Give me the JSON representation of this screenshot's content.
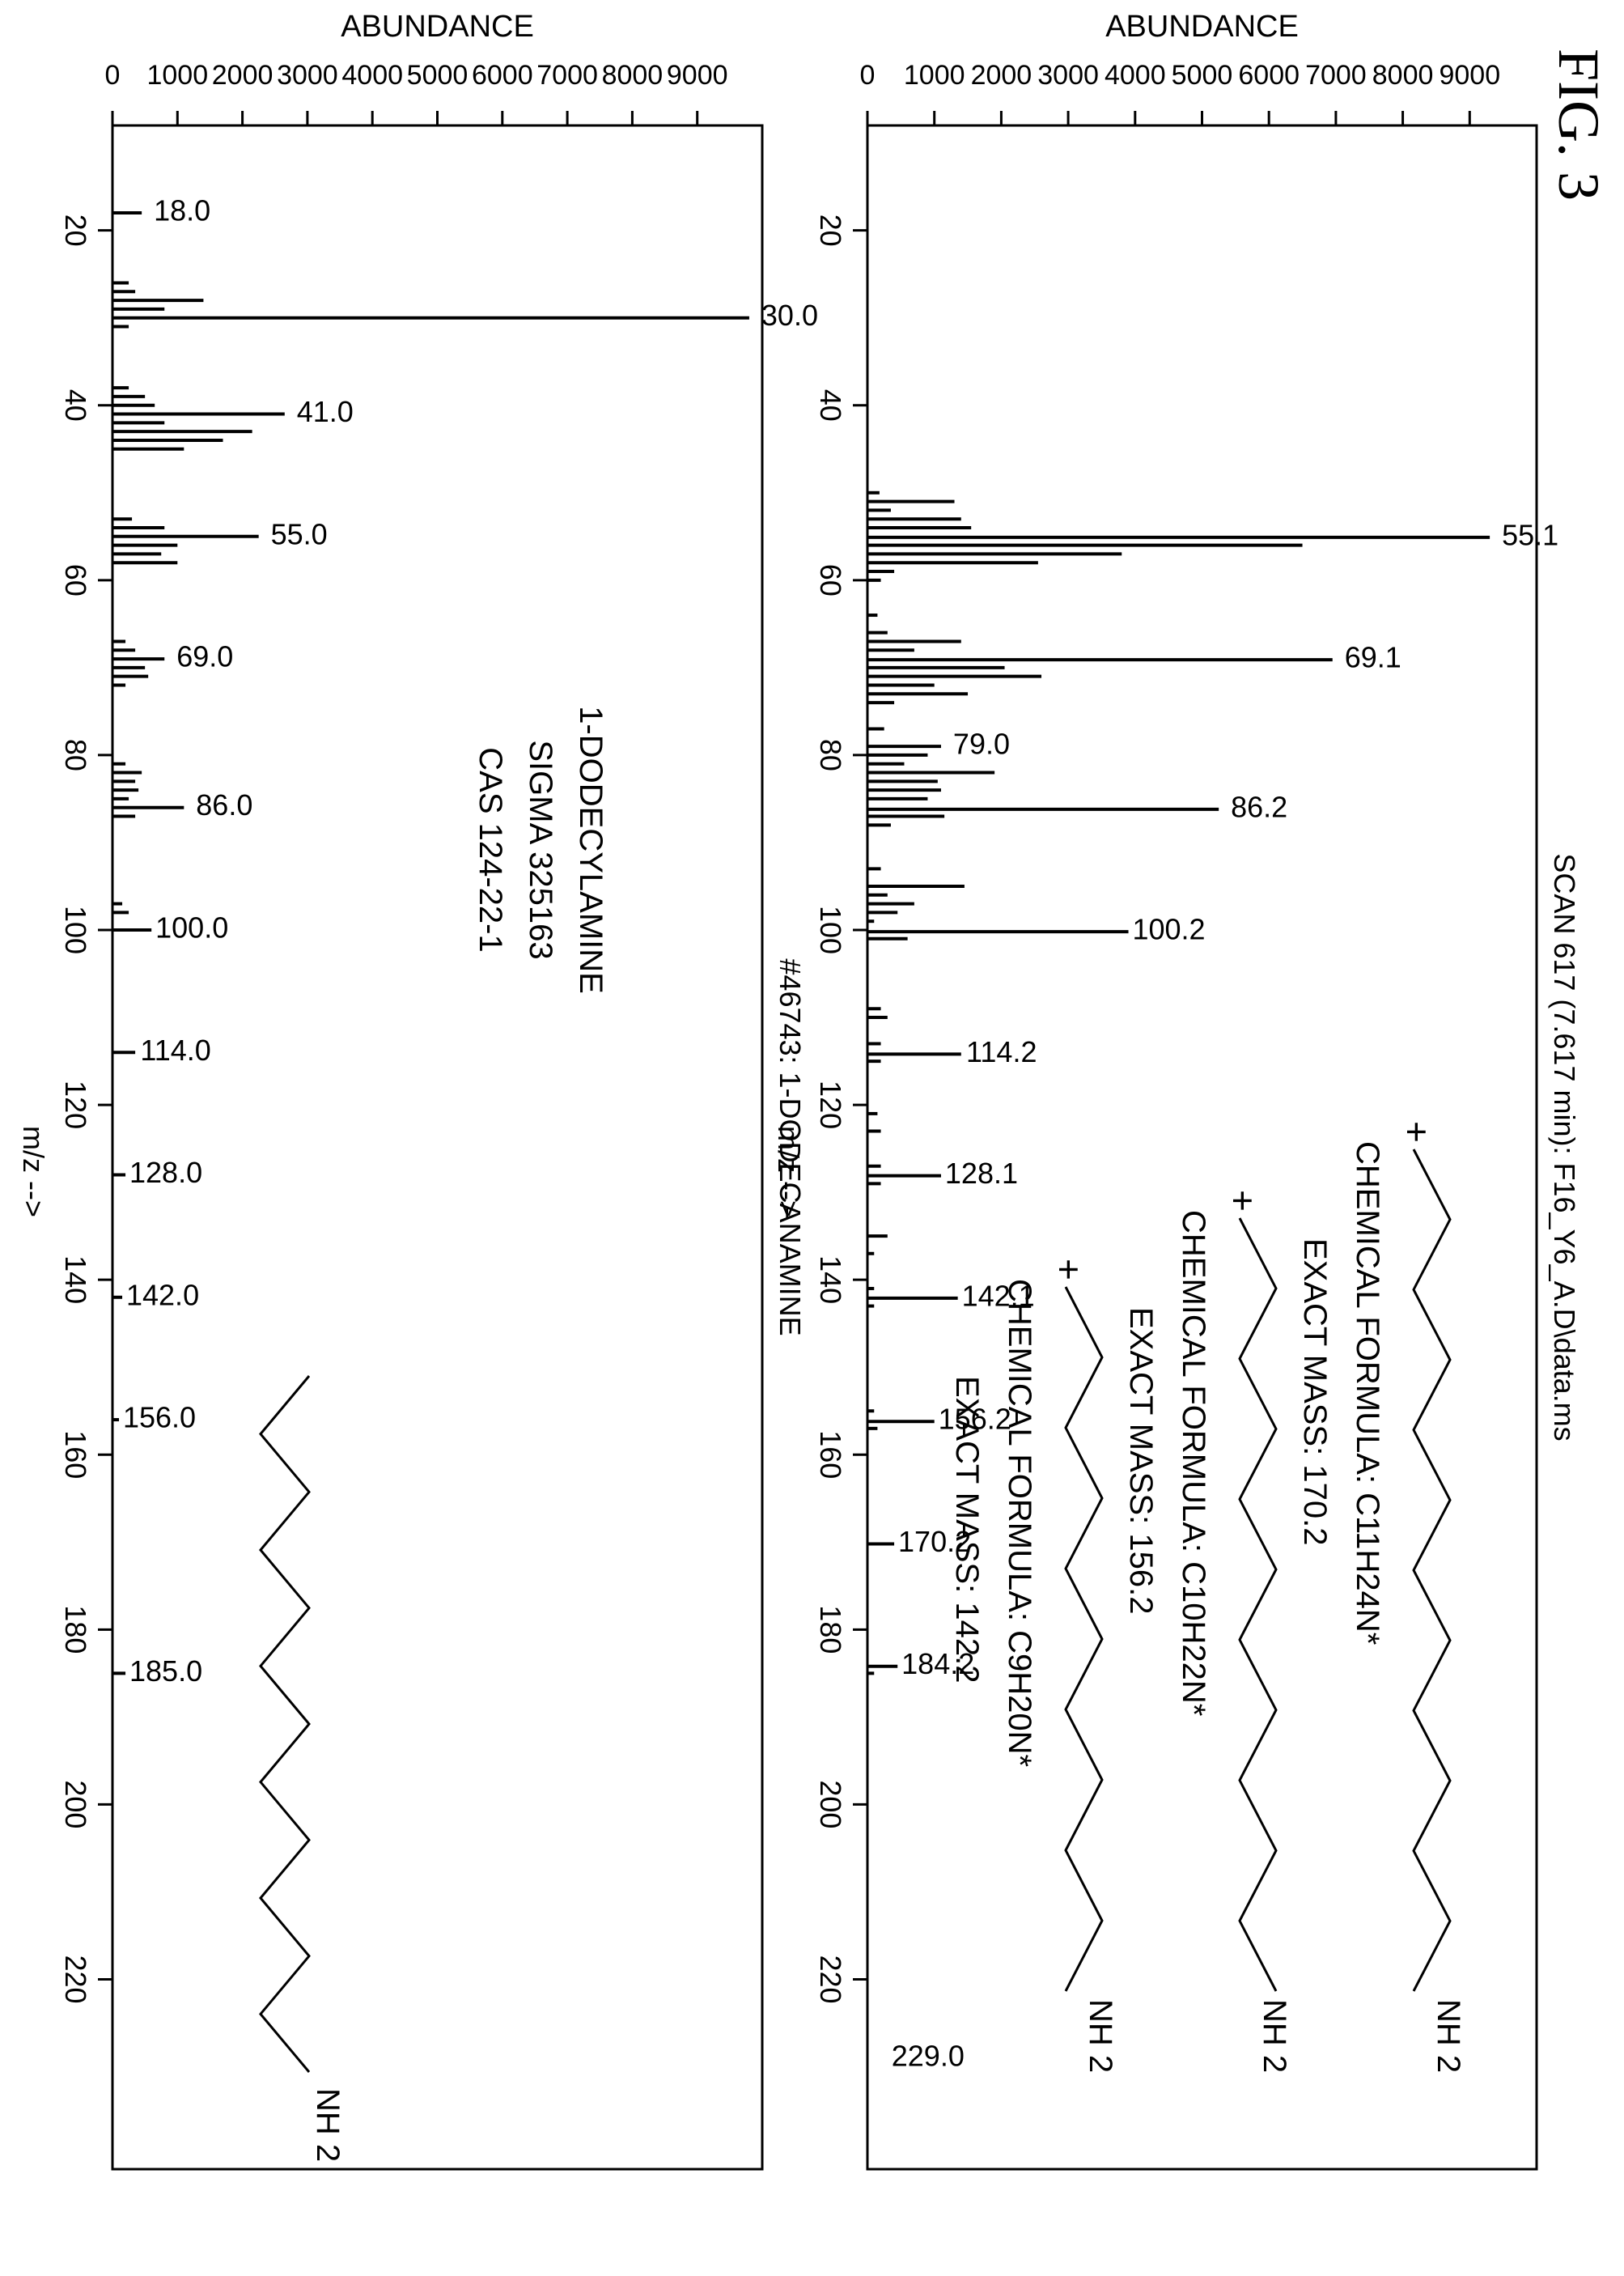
{
  "figure": {
    "label": "FIG. 3"
  },
  "chart_data": [
    {
      "type": "bar",
      "title": "SCAN 617 (7.617 min): F16_Y6_A.D\\data.ms",
      "xlabel": "m/z -->",
      "ylabel": "ABUNDANCE",
      "xlim": [
        8,
        238
      ],
      "ylim": [
        0,
        10000
      ],
      "xticks": [
        "20",
        "40",
        "60",
        "80",
        "100",
        "120",
        "140",
        "160",
        "180",
        "200",
        "220"
      ],
      "yticks": [
        "0",
        "1000",
        "2000",
        "3000",
        "4000",
        "5000",
        "6000",
        "7000",
        "8000",
        "9000"
      ],
      "x": [
        50,
        51,
        52,
        53,
        54,
        55.1,
        56,
        57,
        58,
        59,
        60,
        64,
        66,
        67,
        68,
        69.1,
        70,
        71,
        72,
        73,
        74,
        77,
        79.0,
        80,
        81,
        82,
        83,
        84,
        85,
        86.2,
        87,
        88,
        93,
        95,
        96,
        97,
        98,
        99,
        100.2,
        101,
        109,
        110,
        113,
        114.2,
        115,
        121,
        123,
        127,
        128.1,
        129,
        135,
        137,
        141,
        142.1,
        143,
        155,
        156.2,
        157,
        170.2,
        184.2,
        185
      ],
      "values": [
        180,
        1300,
        350,
        1400,
        1550,
        9300,
        6500,
        3800,
        2550,
        400,
        200,
        150,
        300,
        1400,
        700,
        6950,
        2050,
        2600,
        1000,
        1500,
        400,
        250,
        1100,
        900,
        550,
        1900,
        1050,
        1100,
        900,
        5250,
        1150,
        350,
        200,
        1450,
        300,
        700,
        450,
        100,
        3900,
        600,
        200,
        300,
        200,
        1400,
        200,
        150,
        200,
        200,
        1100,
        200,
        300,
        100,
        100,
        1350,
        100,
        100,
        1000,
        150,
        400,
        450,
        100
      ],
      "peak_labels": [
        {
          "x": 55.1,
          "label": "55.1"
        },
        {
          "x": 69.1,
          "label": "69.1"
        },
        {
          "x": 79.0,
          "label": "79.0"
        },
        {
          "x": 86.2,
          "label": "86.2"
        },
        {
          "x": 100.2,
          "label": "100.2"
        },
        {
          "x": 114.2,
          "label": "114.2"
        },
        {
          "x": 128.1,
          "label": "128.1"
        },
        {
          "x": 142.1,
          "label": "142.1"
        },
        {
          "x": 156.2,
          "label": "156.2"
        },
        {
          "x": 170.2,
          "label": "170.2"
        },
        {
          "x": 184.2,
          "label": "184.2"
        },
        {
          "x": 229.0,
          "label": "229.0"
        }
      ],
      "annotations": [
        {
          "formula": "CHEMICAL FORMULA: C11H24N*",
          "mass": "EXACT MASS: 170.2",
          "charge": "+",
          "group": "NH 2"
        },
        {
          "formula": "CHEMICAL FORMULA: C10H22N*",
          "mass": "EXACT MASS: 156.2",
          "charge": "+",
          "group": "NH 2"
        },
        {
          "formula": "CHEMICAL FORMULA: C9H20N*",
          "mass": "EXACT MASS: 142.2",
          "charge": "+",
          "group": "NH 2"
        }
      ]
    },
    {
      "type": "bar",
      "title": "#46743: 1-DODECANAMINE",
      "xlabel": "m/z -->",
      "ylabel": "ABUNDANCE",
      "xlim": [
        8,
        238
      ],
      "ylim": [
        0,
        10000
      ],
      "xticks": [
        "20",
        "40",
        "60",
        "80",
        "100",
        "120",
        "140",
        "160",
        "180",
        "200",
        "220"
      ],
      "yticks": [
        "0",
        "1000",
        "2000",
        "3000",
        "4000",
        "5000",
        "6000",
        "7000",
        "8000",
        "9000"
      ],
      "x": [
        18.0,
        26,
        27,
        28,
        29,
        30.0,
        31,
        38,
        39,
        40,
        41.0,
        42,
        43,
        44,
        45,
        53,
        54,
        55.0,
        56,
        57,
        58,
        67,
        68,
        69.0,
        70,
        71,
        72,
        81,
        82,
        83,
        84,
        85,
        86.0,
        87,
        97,
        98,
        100.0,
        114.0,
        128.0,
        142.0,
        156.0,
        185.0
      ],
      "values": [
        450,
        250,
        350,
        1400,
        800,
        9800,
        250,
        250,
        500,
        650,
        2650,
        800,
        2150,
        1700,
        1100,
        300,
        800,
        2250,
        1000,
        750,
        1000,
        200,
        350,
        800,
        500,
        550,
        200,
        200,
        450,
        350,
        400,
        250,
        1100,
        350,
        150,
        250,
        600,
        350,
        200,
        150,
        100,
        200
      ],
      "peak_labels": [
        {
          "x": 18.0,
          "label": "18.0"
        },
        {
          "x": 30.0,
          "label": "30.0"
        },
        {
          "x": 41.0,
          "label": "41.0"
        },
        {
          "x": 55.0,
          "label": "55.0"
        },
        {
          "x": 69.0,
          "label": "69.0"
        },
        {
          "x": 86.0,
          "label": "86.0"
        },
        {
          "x": 100.0,
          "label": "100.0"
        },
        {
          "x": 114.0,
          "label": "114.0"
        },
        {
          "x": 128.0,
          "label": "128.0"
        },
        {
          "x": 142.0,
          "label": "142.0"
        },
        {
          "x": 156.0,
          "label": "156.0"
        },
        {
          "x": 185.0,
          "label": "185.0"
        }
      ],
      "annotations": [
        {
          "text": [
            "1-DODECYLAMINE",
            "SIGMA 325163",
            "CAS 124-22-1"
          ],
          "group": "NH 2"
        }
      ]
    }
  ]
}
